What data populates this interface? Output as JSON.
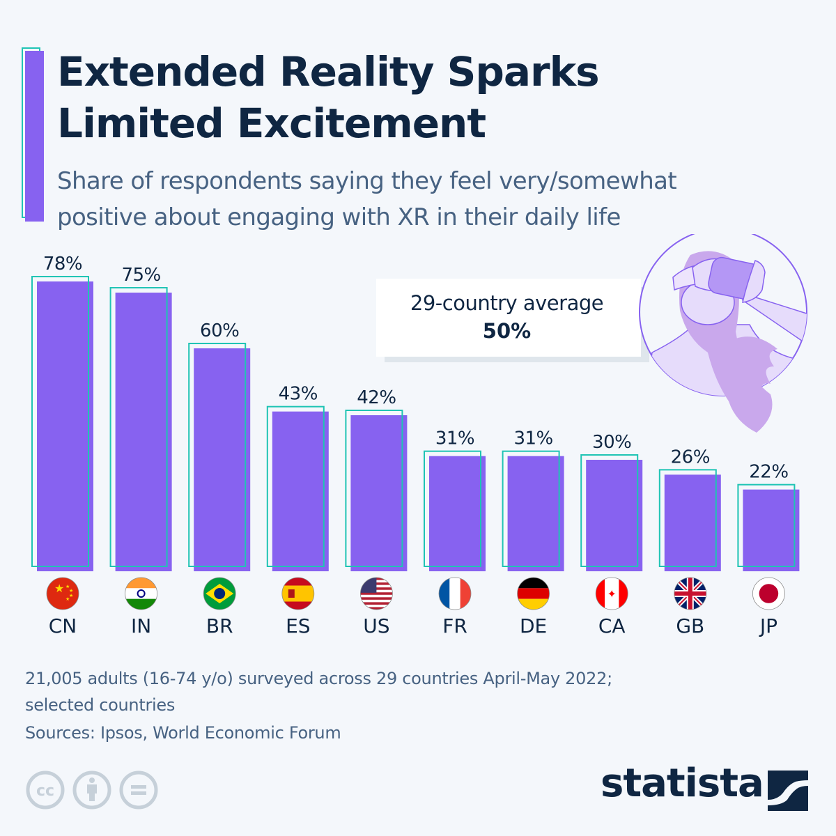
{
  "header": {
    "title_line1": "Extended Reality Sparks",
    "title_line2": "Limited Excitement",
    "subtitle_line1": "Share of respondents saying they feel very/somewhat",
    "subtitle_line2": "positive about engaging with XR in their daily life"
  },
  "colors": {
    "bar_fill": "#8762f0",
    "bar_outline": "#1fc4b4",
    "text_dark": "#0f2642",
    "text_muted": "#476282",
    "background": "#f4f7fb"
  },
  "callout": {
    "label": "29-country average",
    "value": "50%"
  },
  "illustration": {
    "icon": "vr-headset-woman-icon"
  },
  "chart_data": {
    "type": "bar",
    "title": "Extended Reality Sparks Limited Excitement",
    "subtitle": "Share of respondents saying they feel very/somewhat positive about engaging with XR in their daily life",
    "xlabel": "",
    "ylabel": "",
    "unit": "%",
    "categories": [
      "CN",
      "IN",
      "BR",
      "ES",
      "US",
      "FR",
      "DE",
      "CA",
      "GB",
      "JP"
    ],
    "values": [
      78,
      75,
      60,
      43,
      42,
      31,
      31,
      30,
      26,
      22
    ],
    "data_labels": [
      "78%",
      "75%",
      "60%",
      "43%",
      "42%",
      "31%",
      "31%",
      "30%",
      "26%",
      "22%"
    ],
    "flags": [
      "china-flag-icon",
      "india-flag-icon",
      "brazil-flag-icon",
      "spain-flag-icon",
      "usa-flag-icon",
      "france-flag-icon",
      "germany-flag-icon",
      "canada-flag-icon",
      "uk-flag-icon",
      "japan-flag-icon"
    ],
    "ylim": [
      0,
      78
    ],
    "grid": false,
    "legend": "none",
    "reference": {
      "label": "29-country average",
      "value": 50
    }
  },
  "footer": {
    "note_line1": "21,005 adults (16-74 y/o) surveyed across 29 countries April-May 2022;",
    "note_line2": "selected countries",
    "sources": "Sources: Ipsos, World Economic Forum",
    "license_icons": [
      "cc-icon",
      "attribution-icon",
      "no-derivatives-icon"
    ],
    "brand": "statista"
  }
}
